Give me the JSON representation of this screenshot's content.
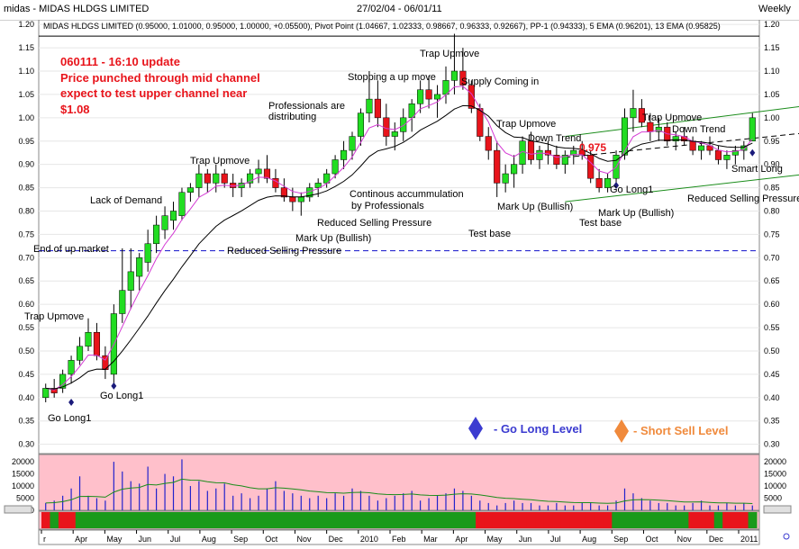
{
  "window": {
    "title": "midas - MIDAS HLDGS LIMITED",
    "date_range": "27/02/04 - 06/01/11",
    "period": "Weekly"
  },
  "chart_header": "MIDAS HLDGS LIMITED (0.95000, 1.01000, 0.95000, 1.00000, +0.05500), Pivot Point (1.04667, 1.02333, 0.98667, 0.96333, 0.92667), PP-1 (0.94333), 5 EMA (0.96201), 13 EMA (0.95825)",
  "update_note": {
    "line1": "060111 - 16:10 update",
    "line2": "Price punched through mid channel",
    "line3": "expect to test upper channel near",
    "line4": "$1.08"
  },
  "highlight_value": "0.975",
  "legend": {
    "go_long": "- Go Long Level",
    "short_sell": "- Short Sell Level",
    "go_long_color": "#3b3bd0",
    "short_sell_color": "#f08a3c"
  },
  "annotations": [
    {
      "id": "ann-trap-upmove-1",
      "text": "Trap Upmove"
    },
    {
      "id": "ann-go-long-1",
      "text": "Go Long1"
    },
    {
      "id": "ann-go-long-2",
      "text": "Go Long1"
    },
    {
      "id": "ann-end-up-market",
      "text": "End of up market"
    },
    {
      "id": "ann-lack-demand",
      "text": "Lack of Demand"
    },
    {
      "id": "ann-trap-upmove-2",
      "text": "Trap Upmove"
    },
    {
      "id": "ann-reduced-selling-1",
      "text": "Reduced Selling Pressure"
    },
    {
      "id": "ann-mark-up-1",
      "text": "Mark Up (Bullish)"
    },
    {
      "id": "ann-reduced-selling-2",
      "text": "Reduced Selling Pressure"
    },
    {
      "id": "ann-pros-distributing-1",
      "text": "Professionals are"
    },
    {
      "id": "ann-pros-distributing-2",
      "text": "distributing"
    },
    {
      "id": "ann-stopping-up",
      "text": "Stopping a up move"
    },
    {
      "id": "ann-continuous-1",
      "text": "Continous accummulation"
    },
    {
      "id": "ann-continuous-2",
      "text": "by Professionals"
    },
    {
      "id": "ann-trap-upmove-3",
      "text": "Trap Upmove"
    },
    {
      "id": "ann-supply-coming",
      "text": "Supply Coming in"
    },
    {
      "id": "ann-test-base-1",
      "text": "Test base"
    },
    {
      "id": "ann-trap-upmove-4",
      "text": "Trap Upmove"
    },
    {
      "id": "ann-down-trend-1",
      "text": "Down Trend"
    },
    {
      "id": "ann-mark-up-2",
      "text": "Mark Up (Bullish)"
    },
    {
      "id": "ann-go-long-3",
      "text": "Go Long1"
    },
    {
      "id": "ann-mark-up-3",
      "text": "Mark Up (Bullish)"
    },
    {
      "id": "ann-test-base-2",
      "text": "Test base"
    },
    {
      "id": "ann-trap-upmove-5",
      "text": "Trap Upmove"
    },
    {
      "id": "ann-down-trend-2",
      "text": "Down Trend"
    },
    {
      "id": "ann-smart-long",
      "text": "Smart Long"
    },
    {
      "id": "ann-reduced-selling-3",
      "text": "Reduced Selling Pressure"
    }
  ],
  "chart_data": {
    "type": "candlestick",
    "x_axis": {
      "tick_labels": [
        "r",
        "Apr",
        "May",
        "Jun",
        "Jul",
        "Aug",
        "Sep",
        "Oct",
        "Nov",
        "Dec",
        "2010",
        "Feb",
        "Mar",
        "Apr",
        "May",
        "Jun",
        "Jul",
        "Aug",
        "Sep",
        "Oct",
        "Nov",
        "Dec",
        "2011"
      ]
    },
    "y_axis": {
      "ylim": [
        0.28,
        1.21
      ],
      "tick_labels": [
        "1.20",
        "1.15",
        "1.10",
        "1.05",
        "1.00",
        "0.95",
        "0.90",
        "0.85",
        "0.80",
        "0.75",
        "0.70",
        "0.65",
        "0.60",
        "0.55",
        "0.50",
        "0.45",
        "0.40",
        "0.35",
        "0.30"
      ],
      "tick_values": [
        1.2,
        1.15,
        1.1,
        1.05,
        1.0,
        0.95,
        0.9,
        0.85,
        0.8,
        0.75,
        0.7,
        0.65,
        0.6,
        0.55,
        0.5,
        0.45,
        0.4,
        0.35,
        0.3
      ]
    },
    "reference_lines": {
      "resistance": 1.175,
      "support_dashed": 0.715,
      "upper_channel": {
        "from": [
          61,
          0.96
        ],
        "to": [
          104,
          1.06
        ]
      },
      "mid_channel": {
        "from": [
          61,
          0.915
        ],
        "to": [
          104,
          0.995
        ]
      },
      "lower_channel": {
        "from": [
          61,
          0.82
        ],
        "to": [
          104,
          0.91
        ]
      }
    },
    "candles": [
      [
        0.4,
        0.43,
        0.39,
        0.42
      ],
      [
        0.42,
        0.44,
        0.4,
        0.41
      ],
      [
        0.42,
        0.46,
        0.41,
        0.45
      ],
      [
        0.45,
        0.49,
        0.43,
        0.48
      ],
      [
        0.48,
        0.53,
        0.47,
        0.51
      ],
      [
        0.51,
        0.57,
        0.5,
        0.54
      ],
      [
        0.54,
        0.56,
        0.48,
        0.49
      ],
      [
        0.49,
        0.51,
        0.44,
        0.46
      ],
      [
        0.45,
        0.6,
        0.43,
        0.58
      ],
      [
        0.58,
        0.72,
        0.56,
        0.63
      ],
      [
        0.63,
        0.72,
        0.59,
        0.67
      ],
      [
        0.66,
        0.71,
        0.63,
        0.7
      ],
      [
        0.69,
        0.76,
        0.67,
        0.73
      ],
      [
        0.73,
        0.79,
        0.71,
        0.77
      ],
      [
        0.76,
        0.81,
        0.74,
        0.79
      ],
      [
        0.78,
        0.82,
        0.76,
        0.8
      ],
      [
        0.79,
        0.85,
        0.78,
        0.84
      ],
      [
        0.84,
        0.86,
        0.82,
        0.85
      ],
      [
        0.85,
        0.9,
        0.83,
        0.88
      ],
      [
        0.88,
        0.89,
        0.84,
        0.86
      ],
      [
        0.86,
        0.9,
        0.84,
        0.88
      ],
      [
        0.88,
        0.89,
        0.85,
        0.86
      ],
      [
        0.86,
        0.88,
        0.83,
        0.85
      ],
      [
        0.85,
        0.87,
        0.83,
        0.86
      ],
      [
        0.86,
        0.89,
        0.85,
        0.88
      ],
      [
        0.88,
        0.91,
        0.86,
        0.89
      ],
      [
        0.89,
        0.92,
        0.86,
        0.87
      ],
      [
        0.87,
        0.89,
        0.84,
        0.85
      ],
      [
        0.85,
        0.87,
        0.82,
        0.83
      ],
      [
        0.83,
        0.85,
        0.8,
        0.82
      ],
      [
        0.82,
        0.84,
        0.79,
        0.83
      ],
      [
        0.83,
        0.86,
        0.82,
        0.85
      ],
      [
        0.85,
        0.87,
        0.83,
        0.86
      ],
      [
        0.86,
        0.89,
        0.85,
        0.88
      ],
      [
        0.88,
        0.92,
        0.87,
        0.91
      ],
      [
        0.91,
        0.95,
        0.89,
        0.93
      ],
      [
        0.93,
        0.97,
        0.91,
        0.96
      ],
      [
        0.96,
        1.02,
        0.94,
        1.01
      ],
      [
        1.01,
        1.1,
        0.99,
        1.04
      ],
      [
        1.04,
        1.08,
        0.98,
        1.0
      ],
      [
        1.0,
        1.03,
        0.94,
        0.96
      ],
      [
        0.96,
        0.99,
        0.93,
        0.97
      ],
      [
        0.97,
        1.02,
        0.95,
        1.0
      ],
      [
        1.0,
        1.04,
        0.97,
        1.03
      ],
      [
        1.03,
        1.08,
        1.01,
        1.06
      ],
      [
        1.06,
        1.09,
        1.02,
        1.04
      ],
      [
        1.04,
        1.07,
        1.0,
        1.05
      ],
      [
        1.05,
        1.11,
        1.03,
        1.08
      ],
      [
        1.08,
        1.18,
        1.05,
        1.1
      ],
      [
        1.1,
        1.15,
        1.06,
        1.07
      ],
      [
        1.07,
        1.08,
        1.01,
        1.02
      ],
      [
        1.02,
        1.03,
        0.95,
        0.96
      ],
      [
        0.96,
        0.98,
        0.91,
        0.93
      ],
      [
        0.93,
        0.95,
        0.83,
        0.86
      ],
      [
        0.86,
        0.9,
        0.84,
        0.88
      ],
      [
        0.88,
        0.92,
        0.85,
        0.9
      ],
      [
        0.9,
        0.96,
        0.88,
        0.95
      ],
      [
        0.95,
        0.97,
        0.9,
        0.91
      ],
      [
        0.91,
        0.94,
        0.89,
        0.93
      ],
      [
        0.93,
        0.95,
        0.9,
        0.92
      ],
      [
        0.92,
        0.94,
        0.89,
        0.9
      ],
      [
        0.9,
        0.93,
        0.88,
        0.92
      ],
      [
        0.92,
        0.94,
        0.9,
        0.93
      ],
      [
        0.93,
        0.95,
        0.91,
        0.92
      ],
      [
        0.92,
        0.93,
        0.86,
        0.87
      ],
      [
        0.87,
        0.89,
        0.84,
        0.85
      ],
      [
        0.85,
        0.88,
        0.84,
        0.87
      ],
      [
        0.87,
        0.93,
        0.86,
        0.92
      ],
      [
        0.92,
        1.02,
        0.91,
        1.0
      ],
      [
        1.0,
        1.06,
        0.97,
        1.02
      ],
      [
        1.02,
        1.04,
        0.98,
        0.99
      ],
      [
        0.99,
        1.01,
        0.95,
        0.97
      ],
      [
        0.97,
        1.0,
        0.95,
        0.98
      ],
      [
        0.98,
        0.99,
        0.94,
        0.95
      ],
      [
        0.95,
        0.97,
        0.93,
        0.96
      ],
      [
        0.96,
        0.98,
        0.94,
        0.95
      ],
      [
        0.95,
        0.96,
        0.92,
        0.93
      ],
      [
        0.93,
        0.95,
        0.91,
        0.94
      ],
      [
        0.94,
        0.96,
        0.92,
        0.93
      ],
      [
        0.93,
        0.94,
        0.9,
        0.91
      ],
      [
        0.91,
        0.93,
        0.89,
        0.92
      ],
      [
        0.92,
        0.94,
        0.9,
        0.93
      ],
      [
        0.93,
        0.95,
        0.91,
        0.94
      ],
      [
        0.95,
        1.01,
        0.95,
        1.0
      ]
    ],
    "volume": {
      "ylim": [
        0,
        23000
      ],
      "tick_labels": [
        "20000",
        "15000",
        "10000",
        "5000",
        "0"
      ],
      "tick_values": [
        20000,
        15000,
        10000,
        5000,
        0
      ],
      "values": [
        3000,
        4000,
        6000,
        9000,
        14000,
        6000,
        5000,
        4000,
        20000,
        16000,
        12000,
        11000,
        18000,
        9000,
        15000,
        14000,
        21000,
        10000,
        12000,
        8000,
        9000,
        11000,
        6000,
        7000,
        5000,
        6000,
        9000,
        12000,
        8000,
        7000,
        6000,
        5000,
        6000,
        5000,
        7000,
        6000,
        9000,
        8000,
        6000,
        4000,
        5000,
        6000,
        7000,
        8000,
        4000,
        5000,
        6000,
        7000,
        9000,
        8000,
        6000,
        4000,
        3000,
        2000,
        3000,
        4000,
        3000,
        3000,
        2000,
        2000,
        3000,
        2000,
        2000,
        3000,
        3000,
        2000,
        2000,
        4000,
        9000,
        7000,
        5000,
        4000,
        3000,
        3000,
        2000,
        2000,
        3000,
        4000,
        2000,
        2000,
        3000,
        2000,
        3000,
        2000
      ]
    },
    "signal_bar": [
      "red",
      "green",
      "red",
      "red",
      "green",
      "green",
      "green",
      "green",
      "green",
      "green",
      "green",
      "green",
      "green",
      "green",
      "green",
      "green",
      "green",
      "green",
      "green",
      "green",
      "green",
      "green",
      "green",
      "green",
      "green",
      "green",
      "green",
      "green",
      "green",
      "green",
      "green",
      "green",
      "green",
      "green",
      "green",
      "green",
      "green",
      "green",
      "green",
      "green",
      "green",
      "green",
      "green",
      "green",
      "green",
      "green",
      "green",
      "green",
      "green",
      "green",
      "green",
      "red",
      "red",
      "red",
      "red",
      "red",
      "red",
      "red",
      "red",
      "red",
      "red",
      "red",
      "red",
      "red",
      "red",
      "red",
      "red",
      "green",
      "green",
      "green",
      "green",
      "green",
      "green",
      "green",
      "green",
      "green",
      "red",
      "red",
      "red",
      "green",
      "red",
      "red",
      "red",
      "green"
    ]
  }
}
